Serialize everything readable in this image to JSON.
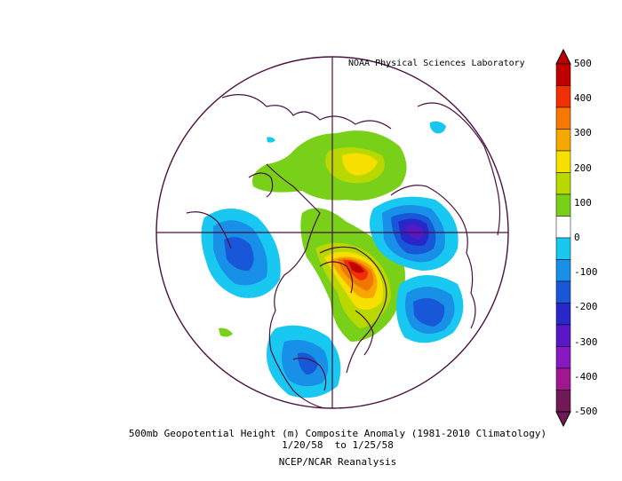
{
  "credit": "NOAA Physical Sciences Laboratory",
  "title": "500mb Geopotential Height (m) Composite Anomaly (1981-2010 Climatology)",
  "dates": "1/20/58  to 1/25/58",
  "dataset": "NCEP/NCAR Reanalysis",
  "colorbar": {
    "labels": [
      "500",
      "400",
      "300",
      "200",
      "100",
      "0",
      "-100",
      "-200",
      "-300",
      "-400",
      "-500"
    ],
    "colors": [
      "#c00000",
      "#f03000",
      "#f77800",
      "#f7a800",
      "#f7e000",
      "#b8d800",
      "#78d018",
      "#ffffff",
      "#18c8f0",
      "#1890e8",
      "#1858d8",
      "#2828c8",
      "#5818c8",
      "#8818c0",
      "#a01890",
      "#701858"
    ]
  },
  "map": {
    "projection": "north-polar-stereographic",
    "anomalies": [
      {
        "sign": "positive",
        "peak": 450
      },
      {
        "sign": "positive",
        "peak": 250
      },
      {
        "sign": "negative",
        "peak": -250
      },
      {
        "sign": "negative",
        "peak": -200
      },
      {
        "sign": "negative",
        "peak": -200
      },
      {
        "sign": "negative",
        "peak": -150
      }
    ]
  }
}
